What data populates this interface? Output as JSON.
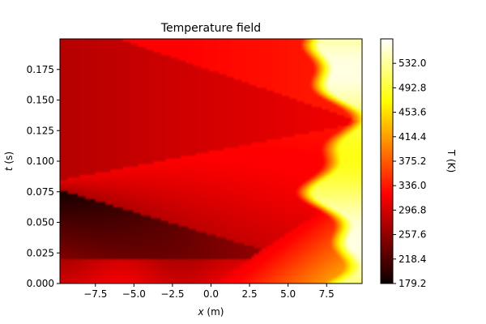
{
  "chart_data": {
    "type": "heatmap",
    "title": "Temperature field",
    "xlabel_main": "x",
    "xlabel_unit": " (m)",
    "ylabel_main": "t",
    "ylabel_unit": " (s)",
    "xlim": [
      -9.8,
      9.8
    ],
    "ylim": [
      0.0,
      0.2
    ],
    "x_ticks": [
      -7.5,
      -5.0,
      -2.5,
      0.0,
      2.5,
      5.0,
      7.5
    ],
    "x_tick_labels": [
      "−7.5",
      "−5.0",
      "−2.5",
      "0.0",
      "2.5",
      "5.0",
      "7.5"
    ],
    "y_ticks": [
      0.0,
      0.025,
      0.05,
      0.075,
      0.1,
      0.125,
      0.15,
      0.175
    ],
    "y_tick_labels": [
      "0.000",
      "0.025",
      "0.050",
      "0.075",
      "0.100",
      "0.125",
      "0.150",
      "0.175"
    ],
    "colorbar": {
      "label": "T (K)",
      "colormap": "hot",
      "range": [
        179.2,
        571.2
      ],
      "ticks": [
        179.2,
        218.4,
        257.6,
        296.8,
        336.0,
        375.2,
        414.4,
        453.6,
        492.8,
        532.0
      ],
      "tick_labels": [
        "179.2",
        "218.4",
        "257.6",
        "296.8",
        "336.0",
        "375.2",
        "414.4",
        "453.6",
        "492.8",
        "532.0"
      ]
    },
    "field": {
      "grid_resolution": [
        120,
        90
      ],
      "regions": [
        {
          "name": "bottom-left",
          "temperature": 300
        },
        {
          "name": "lower-wedge",
          "temperature": 240
        },
        {
          "name": "mid-wedge",
          "temperature": 280
        },
        {
          "name": "upper-band",
          "temperature": 330
        },
        {
          "name": "upper-wedge",
          "temperature": 275
        },
        {
          "name": "top-band",
          "temperature": 325
        },
        {
          "name": "right-hot-region",
          "temperature": 520
        }
      ]
    }
  }
}
